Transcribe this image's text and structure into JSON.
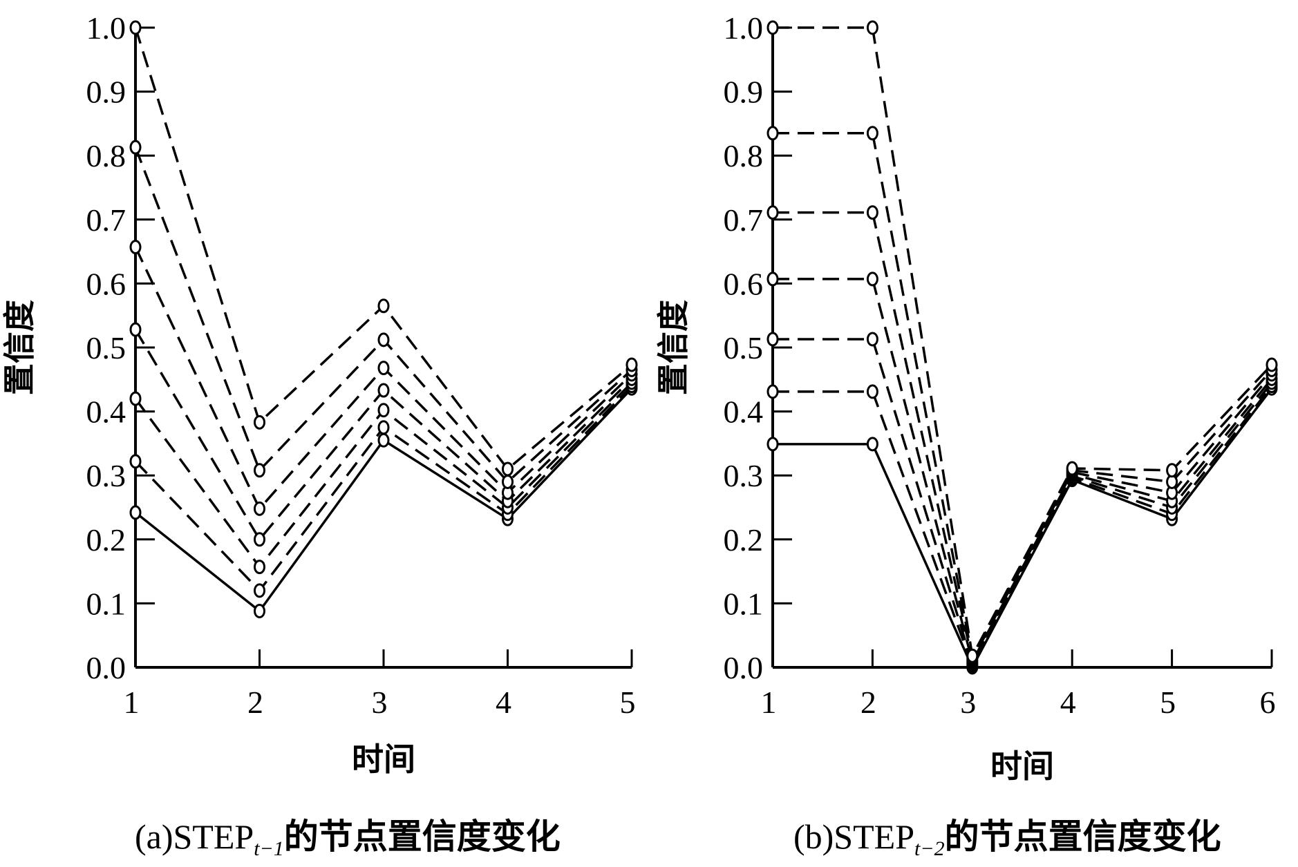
{
  "chart_data": [
    {
      "type": "line",
      "caption": {
        "prefix": "(a)STEP",
        "subscript": "t−1",
        "suffix": "的节点置信度变化"
      },
      "xlabel": "时间",
      "ylabel": "置信度",
      "xlim": [
        1,
        5
      ],
      "ylim": [
        0,
        1.0
      ],
      "xticks": [
        "1",
        "2",
        "3",
        "4",
        "5"
      ],
      "yticks": [
        "0.0",
        "0.1",
        "0.2",
        "0.3",
        "0.4",
        "0.5",
        "0.6",
        "0.7",
        "0.8",
        "0.9",
        "1.0"
      ],
      "x": [
        1,
        2,
        3,
        4,
        5
      ],
      "series": [
        {
          "style": "solid",
          "values": [
            0.242,
            0.088,
            0.355,
            0.232,
            0.436
          ]
        },
        {
          "style": "dashed",
          "values": [
            0.322,
            0.12,
            0.375,
            0.24,
            0.44
          ]
        },
        {
          "style": "dashed",
          "values": [
            0.42,
            0.157,
            0.402,
            0.25,
            0.445
          ]
        },
        {
          "style": "dashed",
          "values": [
            0.528,
            0.2,
            0.433,
            0.26,
            0.451
          ]
        },
        {
          "style": "dashed",
          "values": [
            0.657,
            0.248,
            0.468,
            0.273,
            0.458
          ]
        },
        {
          "style": "dashed",
          "values": [
            0.813,
            0.308,
            0.512,
            0.29,
            0.465
          ]
        },
        {
          "style": "dashed",
          "values": [
            1.0,
            0.383,
            0.565,
            0.31,
            0.473
          ]
        }
      ]
    },
    {
      "type": "line",
      "caption": {
        "prefix": "(b)STEP",
        "subscript": "t−2",
        "suffix": "的节点置信度变化"
      },
      "xlabel": "时间",
      "ylabel": "置信度",
      "xlim": [
        1,
        6
      ],
      "ylim": [
        0,
        1.0
      ],
      "xticks": [
        "1",
        "2",
        "3",
        "4",
        "5",
        "6"
      ],
      "yticks": [
        "0.0",
        "0.1",
        "0.2",
        "0.3",
        "0.4",
        "0.5",
        "0.6",
        "0.7",
        "0.8",
        "0.9",
        "1.0"
      ],
      "x": [
        1,
        2,
        3,
        4,
        5,
        6
      ],
      "series": [
        {
          "style": "solid",
          "values": [
            0.349,
            0.349,
            0.0,
            0.293,
            0.232,
            0.436
          ]
        },
        {
          "style": "dashed",
          "values": [
            0.431,
            0.431,
            0.003,
            0.296,
            0.24,
            0.44
          ]
        },
        {
          "style": "dashed",
          "values": [
            0.513,
            0.513,
            0.006,
            0.299,
            0.25,
            0.445
          ]
        },
        {
          "style": "dashed",
          "values": [
            0.607,
            0.607,
            0.009,
            0.302,
            0.26,
            0.451
          ]
        },
        {
          "style": "dashed",
          "values": [
            0.711,
            0.711,
            0.012,
            0.305,
            0.273,
            0.458
          ]
        },
        {
          "style": "dashed",
          "values": [
            0.835,
            0.835,
            0.015,
            0.308,
            0.29,
            0.465
          ]
        },
        {
          "style": "dashed",
          "values": [
            1.0,
            1.0,
            0.018,
            0.311,
            0.308,
            0.473
          ]
        }
      ]
    }
  ]
}
